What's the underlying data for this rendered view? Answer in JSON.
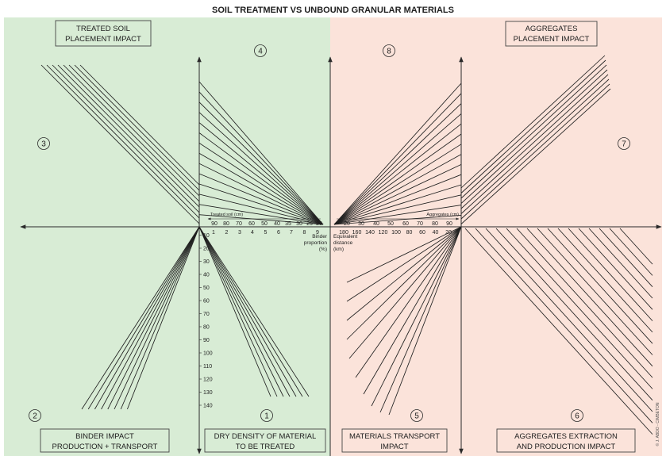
{
  "title": "SOIL TREATMENT VS UNBOUND GRANULAR MATERIALS",
  "colors": {
    "treated_soil_panel": "#d8ecd5",
    "aggregates_panel": "#fbe3da",
    "ink": "#1f1f1f"
  },
  "boxes": {
    "treated_soil_placement": {
      "line1": "TREATED SOIL",
      "line2": "PLACEMENT IMPACT"
    },
    "aggregates_placement": {
      "line1": "AGGREGATES",
      "line2": "PLACEMENT IMPACT"
    },
    "binder_impact": {
      "line1": "BINDER IMPACT",
      "line2": "PRODUCTION + TRANSPORT"
    },
    "dry_density": {
      "line1": "DRY DENSITY OF MATERIAL",
      "line2": "TO BE TREATED"
    },
    "materials_transport": {
      "line1": "MATERIALS TRANSPORT",
      "line2": "IMPACT"
    },
    "aggregates_extraction": {
      "line1": "AGGREGATES EXTRACTION",
      "line2": "AND PRODUCTION IMPACT"
    }
  },
  "quadrants": {
    "q1": "1",
    "q2": "2",
    "q3": "3",
    "q4": "4",
    "q5": "5",
    "q6": "6",
    "q7": "7",
    "q8": "8"
  },
  "scales": {
    "treated_soil": {
      "label": "Treated soil (cm)",
      "ticks": [
        "90",
        "80",
        "70",
        "60",
        "50",
        "40",
        "35",
        "30",
        "25",
        "20"
      ]
    },
    "binder_proportion": {
      "label": {
        "line1": "Binder",
        "line2": "proportion",
        "line3": "(%)"
      },
      "ticks": [
        "1",
        "2",
        "3",
        "4",
        "5",
        "6",
        "7",
        "8",
        "9"
      ]
    },
    "aggregates": {
      "label": "Aggregates (cm)",
      "ticks": [
        "20",
        "30",
        "40",
        "50",
        "60",
        "70",
        "80",
        "90"
      ]
    },
    "equivalent_distance": {
      "label": {
        "line1": "Equivalent",
        "line2": "distance",
        "line3": "(km)"
      },
      "ticks": [
        "180",
        "160",
        "140",
        "120",
        "100",
        "80",
        "60",
        "40",
        "20"
      ]
    },
    "dry_density": {
      "ticks": [
        "10",
        "20",
        "30",
        "40",
        "50",
        "60",
        "70",
        "80",
        "90",
        "100",
        "110",
        "120",
        "130",
        "140"
      ]
    }
  },
  "credit": "© J. ABDO - CIMBETON"
}
